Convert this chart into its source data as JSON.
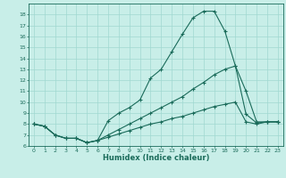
{
  "xlabel": "Humidex (Indice chaleur)",
  "ylabel": "",
  "bg_color": "#c8eee8",
  "grid_color": "#a0d8d0",
  "line_color": "#1a6b5a",
  "xlim": [
    -0.5,
    23.5
  ],
  "ylim": [
    6,
    19
  ],
  "xticks": [
    0,
    1,
    2,
    3,
    4,
    5,
    6,
    7,
    8,
    9,
    10,
    11,
    12,
    13,
    14,
    15,
    16,
    17,
    18,
    19,
    20,
    21,
    22,
    23
  ],
  "yticks": [
    6,
    7,
    8,
    9,
    10,
    11,
    12,
    13,
    14,
    15,
    16,
    17,
    18
  ],
  "line1_x": [
    0,
    1,
    2,
    3,
    4,
    5,
    6,
    7,
    8,
    9,
    10,
    11,
    12,
    13,
    14,
    15,
    16,
    17,
    18,
    19,
    20,
    21,
    22,
    23
  ],
  "line1_y": [
    8,
    7.8,
    7.0,
    6.7,
    6.7,
    6.3,
    6.5,
    8.3,
    9.0,
    9.5,
    10.2,
    12.2,
    13.0,
    14.6,
    16.2,
    17.7,
    18.3,
    18.3,
    16.5,
    13.3,
    11.0,
    8.2,
    8.2,
    8.2
  ],
  "line2_x": [
    0,
    1,
    2,
    3,
    4,
    5,
    6,
    7,
    8,
    9,
    10,
    11,
    12,
    13,
    14,
    15,
    16,
    17,
    18,
    19,
    20,
    21,
    22,
    23
  ],
  "line2_y": [
    8,
    7.8,
    7.0,
    6.7,
    6.7,
    6.3,
    6.5,
    7.0,
    7.5,
    8.0,
    8.5,
    9.0,
    9.5,
    10.0,
    10.5,
    11.2,
    11.8,
    12.5,
    13.0,
    13.3,
    8.9,
    8.1,
    8.2,
    8.2
  ],
  "line3_x": [
    0,
    1,
    2,
    3,
    4,
    5,
    6,
    7,
    8,
    9,
    10,
    11,
    12,
    13,
    14,
    15,
    16,
    17,
    18,
    19,
    20,
    21,
    22,
    23
  ],
  "line3_y": [
    8,
    7.8,
    7.0,
    6.7,
    6.7,
    6.3,
    6.5,
    6.8,
    7.1,
    7.4,
    7.7,
    8.0,
    8.2,
    8.5,
    8.7,
    9.0,
    9.3,
    9.6,
    9.8,
    10.0,
    8.2,
    8.0,
    8.2,
    8.2
  ]
}
